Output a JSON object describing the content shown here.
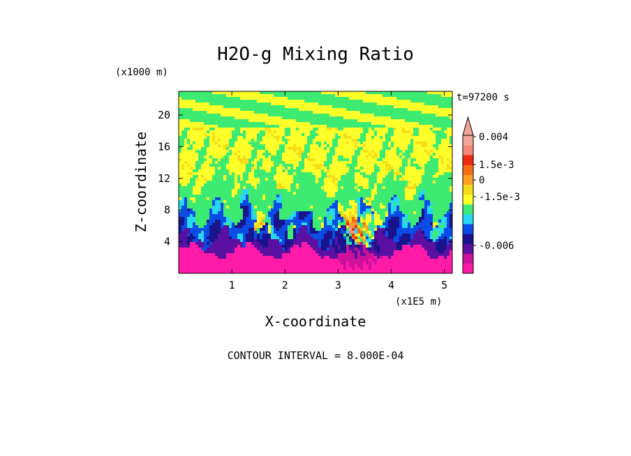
{
  "chart_data": {
    "type": "heatmap",
    "title": "H2O-g Mixing Ratio",
    "time_label": "t=97200 s",
    "xlabel": "X-coordinate",
    "ylabel": "Z-coordinate",
    "x_scale_label": "(x1E5 m)",
    "y_scale_label": "(x1000 m)",
    "xlim": [
      0,
      5.15
    ],
    "ylim": [
      0,
      23
    ],
    "x_ticks": [
      "1",
      "2",
      "3",
      "4",
      "5"
    ],
    "y_ticks": [
      "4",
      "8",
      "12",
      "16",
      "20"
    ],
    "x_tick_values": [
      1,
      2,
      3,
      4,
      5
    ],
    "y_tick_values": [
      4,
      8,
      12,
      16,
      20
    ],
    "colorbar": {
      "extend": "max",
      "colors": [
        "#ff1aa8",
        "#cc119b",
        "#5a10a0",
        "#1a148c",
        "#0a4ce6",
        "#28d7f0",
        "#3dea72",
        "#ffff2a",
        "#f7dc1a",
        "#ffa020",
        "#f56c14",
        "#ef2a10",
        "#f2877a",
        "#f2a59a"
      ],
      "labels": [
        {
          "text": "0.004",
          "value": 0.004
        },
        {
          "text": "1.5e-3",
          "value": 0.0015
        },
        {
          "text": "0",
          "value": 0
        },
        {
          "text": "-1.5e-3",
          "value": -0.0015
        },
        {
          "text": "-0.006",
          "value": -0.006
        }
      ]
    },
    "contour_interval_text": "CONTOUR INTERVAL = 8.000E-04"
  }
}
